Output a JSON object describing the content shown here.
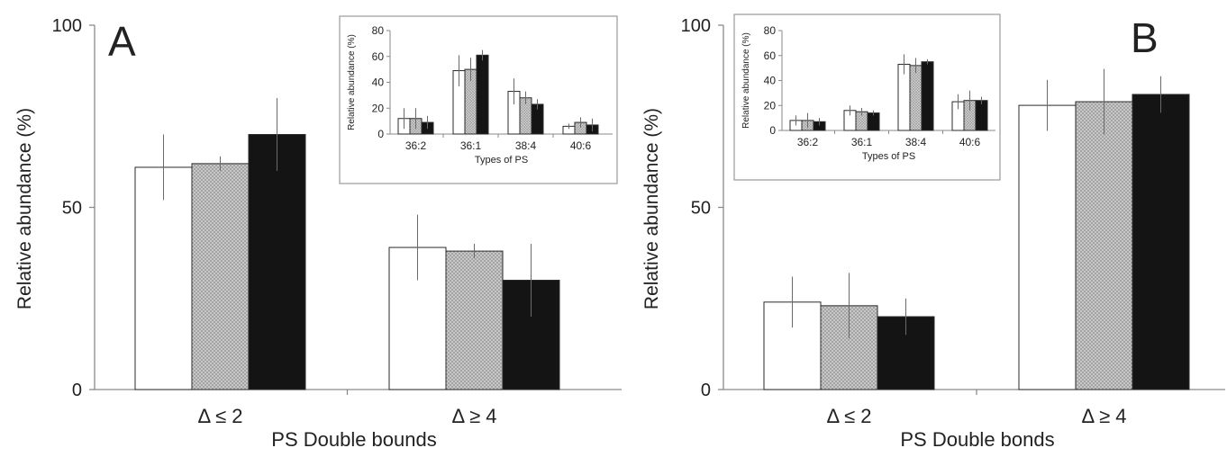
{
  "chart_data": [
    {
      "type": "bar",
      "panel_label": "A",
      "title": "",
      "xlabel": "PS Double bounds",
      "ylabel": "Relative abundance (%)",
      "ylim": [
        0,
        100
      ],
      "yticks": [
        0,
        50,
        100
      ],
      "grid": false,
      "categories": [
        "Δ ≤ 2",
        "Δ ≥ 4"
      ],
      "series": [
        {
          "color": "#ffffff",
          "pattern": "none",
          "values": [
            61,
            39
          ],
          "errors": [
            9,
            9
          ]
        },
        {
          "color": "#c8c8c8",
          "pattern": "crosshatch",
          "values": [
            62,
            38
          ],
          "errors": [
            2,
            2
          ]
        },
        {
          "color": "#141414",
          "pattern": "none",
          "values": [
            70,
            30
          ],
          "errors": [
            10,
            10
          ]
        }
      ],
      "inset": {
        "type": "bar",
        "xlabel": "Types of PS",
        "ylabel": "Relative abundance (%)",
        "ylim": [
          0,
          80
        ],
        "yticks": [
          0,
          20,
          40,
          60,
          80
        ],
        "categories": [
          "36:2",
          "36:1",
          "38:4",
          "40:6"
        ],
        "series": [
          {
            "values": [
              12,
              49,
              33,
              6
            ],
            "errors": [
              8,
              12,
              10,
              2
            ]
          },
          {
            "values": [
              12,
              50,
              28,
              9
            ],
            "errors": [
              8,
              9,
              5,
              4
            ]
          },
          {
            "values": [
              9,
              61,
              23,
              7
            ],
            "errors": [
              5,
              4,
              4,
              5
            ]
          }
        ]
      }
    },
    {
      "type": "bar",
      "panel_label": "B",
      "title": "",
      "xlabel": "PS Double bonds",
      "ylabel": "Relative abundance (%)",
      "ylim": [
        0,
        100
      ],
      "yticks": [
        0,
        50,
        100
      ],
      "grid": false,
      "categories": [
        "Δ ≤ 2",
        "Δ ≥ 4"
      ],
      "series": [
        {
          "color": "#ffffff",
          "pattern": "none",
          "values": [
            24,
            78
          ],
          "errors": [
            7,
            7
          ]
        },
        {
          "color": "#c8c8c8",
          "pattern": "crosshatch",
          "values": [
            23,
            79
          ],
          "errors": [
            9,
            9
          ]
        },
        {
          "color": "#141414",
          "pattern": "none",
          "values": [
            20,
            81
          ],
          "errors": [
            5,
            5
          ]
        }
      ],
      "inset": {
        "type": "bar",
        "xlabel": "Types of PS",
        "ylabel": "Relative abundance (%)",
        "ylim": [
          0,
          80
        ],
        "yticks": [
          0,
          20,
          40,
          60,
          80
        ],
        "categories": [
          "36:2",
          "36:1",
          "38:4",
          "40:6"
        ],
        "series": [
          {
            "values": [
              8,
              16,
              53,
              23
            ],
            "errors": [
              4,
              4,
              8,
              6
            ]
          },
          {
            "values": [
              8,
              15,
              52,
              24
            ],
            "errors": [
              6,
              3,
              6,
              8
            ]
          },
          {
            "values": [
              7,
              14,
              55,
              24
            ],
            "errors": [
              3,
              2,
              2,
              3
            ]
          }
        ]
      }
    }
  ]
}
